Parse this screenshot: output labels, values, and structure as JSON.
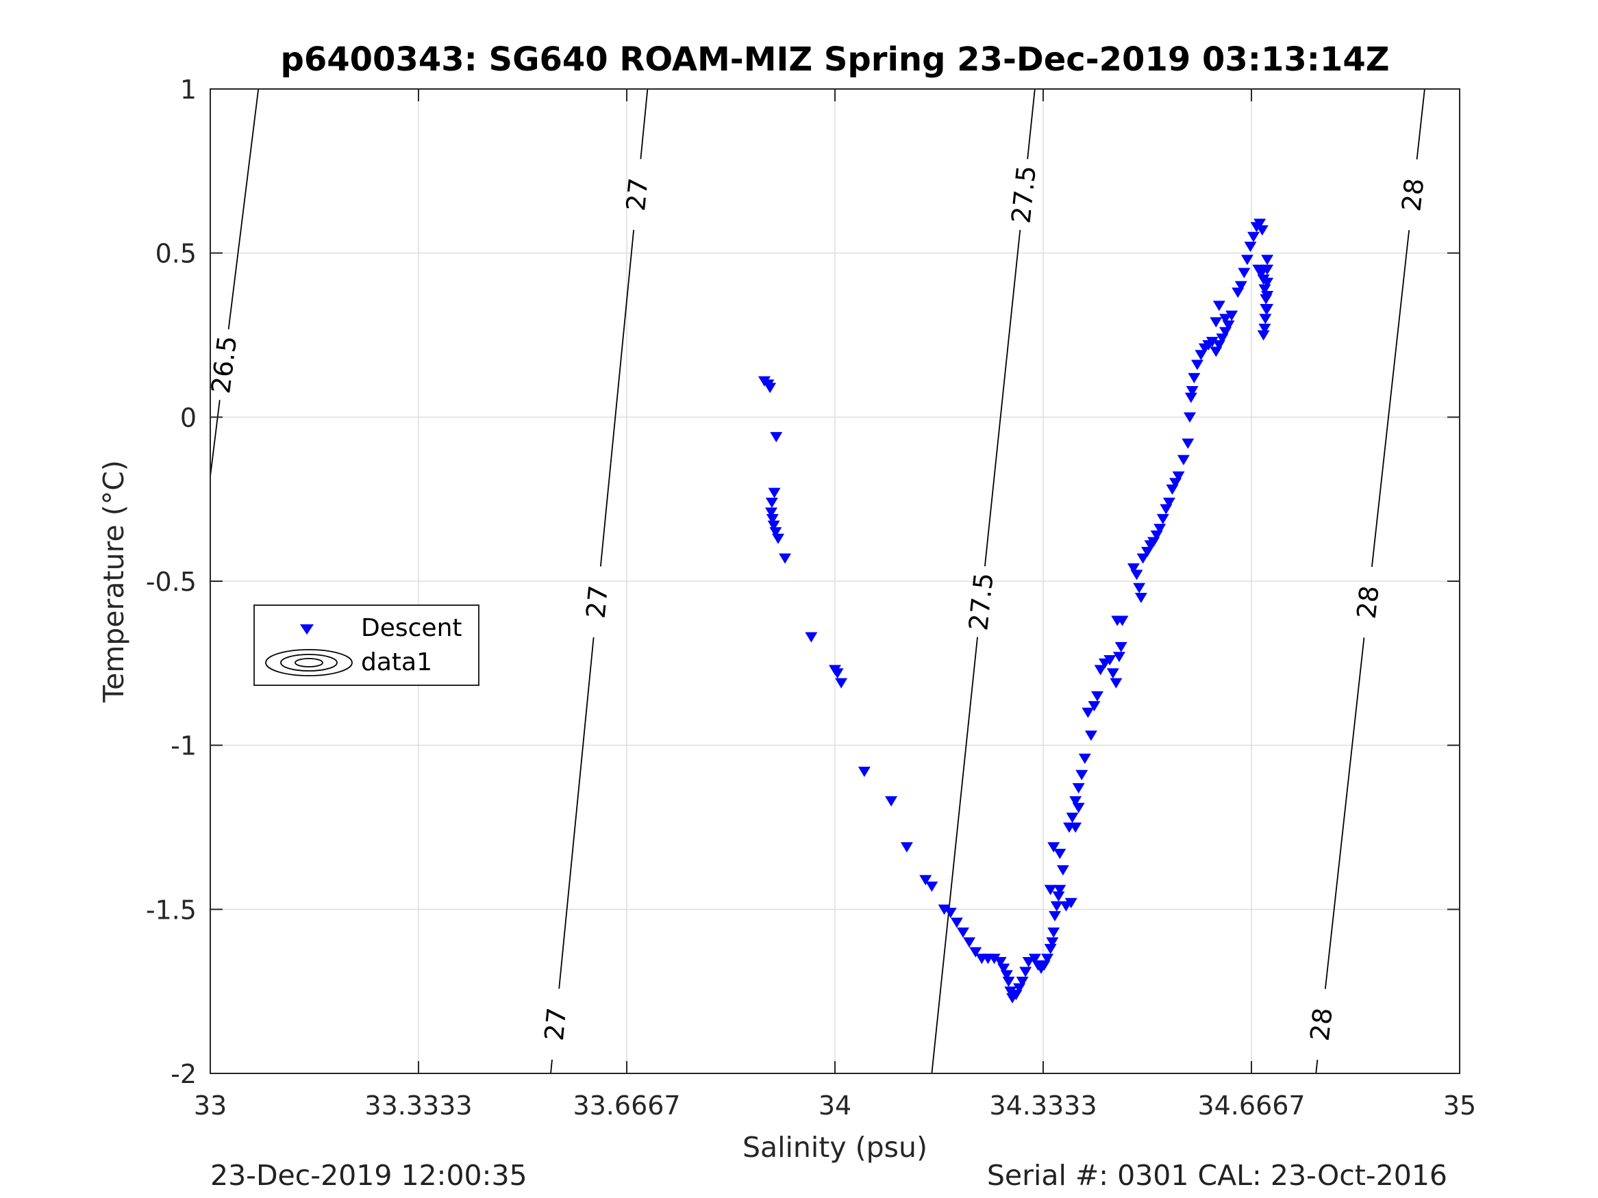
{
  "chart_data": {
    "type": "scatter",
    "title": "p6400343: SG640 ROAM-MIZ Spring 23-Dec-2019 03:13:14Z",
    "xlabel": "Salinity (psu)",
    "ylabel": "Temperature (°C)",
    "xlim": [
      33,
      35
    ],
    "ylim": [
      -2,
      1
    ],
    "x_ticks": [
      33,
      33.3333,
      33.6667,
      34,
      34.3333,
      34.6667,
      35
    ],
    "x_tick_labels": [
      "33",
      "33.3333",
      "33.6667",
      "34",
      "34.3333",
      "34.6667",
      "35"
    ],
    "y_ticks": [
      -2,
      -1.5,
      -1,
      -0.5,
      0,
      0.5,
      1
    ],
    "y_tick_labels": [
      "-2",
      "-1.5",
      "-1",
      "-0.5",
      "0",
      "0.5",
      "1"
    ],
    "grid": true,
    "legend": {
      "placement": "middle-left",
      "entries": [
        "Descent",
        "data1"
      ]
    },
    "series": [
      {
        "name": "Descent",
        "marker": "triangle-down",
        "color": "#0000ff",
        "points": [
          [
            33.887,
            0.11
          ],
          [
            33.893,
            0.1
          ],
          [
            33.896,
            0.09
          ],
          [
            33.906,
            -0.06
          ],
          [
            33.903,
            -0.23
          ],
          [
            33.899,
            -0.26
          ],
          [
            33.898,
            -0.29
          ],
          [
            33.9,
            -0.31
          ],
          [
            33.902,
            -0.33
          ],
          [
            33.905,
            -0.35
          ],
          [
            33.909,
            -0.37
          ],
          [
            33.92,
            -0.43
          ],
          [
            33.962,
            -0.67
          ],
          [
            34.0,
            -0.77
          ],
          [
            34.004,
            -0.78
          ],
          [
            34.01,
            -0.81
          ],
          [
            34.047,
            -1.08
          ],
          [
            34.09,
            -1.17
          ],
          [
            34.115,
            -1.31
          ],
          [
            34.145,
            -1.41
          ],
          [
            34.155,
            -1.43
          ],
          [
            34.175,
            -1.5
          ],
          [
            34.185,
            -1.51
          ],
          [
            34.195,
            -1.54
          ],
          [
            34.205,
            -1.57
          ],
          [
            34.215,
            -1.6
          ],
          [
            34.225,
            -1.63
          ],
          [
            34.235,
            -1.65
          ],
          [
            34.245,
            -1.65
          ],
          [
            34.255,
            -1.65
          ],
          [
            34.265,
            -1.66
          ],
          [
            34.27,
            -1.68
          ],
          [
            34.275,
            -1.7
          ],
          [
            34.278,
            -1.72
          ],
          [
            34.281,
            -1.75
          ],
          [
            34.284,
            -1.77
          ],
          [
            34.29,
            -1.76
          ],
          [
            34.295,
            -1.74
          ],
          [
            34.3,
            -1.72
          ],
          [
            34.305,
            -1.69
          ],
          [
            34.31,
            -1.66
          ],
          [
            34.32,
            -1.65
          ],
          [
            34.325,
            -1.67
          ],
          [
            34.33,
            -1.68
          ],
          [
            34.335,
            -1.67
          ],
          [
            34.34,
            -1.65
          ],
          [
            34.345,
            -1.62
          ],
          [
            34.348,
            -1.6
          ],
          [
            34.35,
            -1.57
          ],
          [
            34.352,
            -1.52
          ],
          [
            34.355,
            -1.49
          ],
          [
            34.358,
            -1.46
          ],
          [
            34.36,
            -1.44
          ],
          [
            34.345,
            -1.44
          ],
          [
            34.35,
            -1.31
          ],
          [
            34.36,
            -1.33
          ],
          [
            34.365,
            -1.38
          ],
          [
            34.37,
            -1.49
          ],
          [
            34.378,
            -1.48
          ],
          [
            34.375,
            -1.25
          ],
          [
            34.38,
            -1.22
          ],
          [
            34.385,
            -1.17
          ],
          [
            34.39,
            -1.13
          ],
          [
            34.395,
            -1.09
          ],
          [
            34.4,
            -1.04
          ],
          [
            34.39,
            -1.19
          ],
          [
            34.385,
            -1.25
          ],
          [
            34.41,
            -0.97
          ],
          [
            34.405,
            -0.9
          ],
          [
            34.415,
            -0.88
          ],
          [
            34.42,
            -0.85
          ],
          [
            34.425,
            -0.77
          ],
          [
            34.432,
            -0.75
          ],
          [
            34.44,
            -0.74
          ],
          [
            34.445,
            -0.78
          ],
          [
            34.45,
            -0.81
          ],
          [
            34.455,
            -0.73
          ],
          [
            34.458,
            -0.7
          ],
          [
            34.452,
            -0.62
          ],
          [
            34.46,
            -0.62
          ],
          [
            34.478,
            -0.46
          ],
          [
            34.483,
            -0.48
          ],
          [
            34.487,
            -0.52
          ],
          [
            34.49,
            -0.55
          ],
          [
            34.493,
            -0.43
          ],
          [
            34.5,
            -0.41
          ],
          [
            34.505,
            -0.39
          ],
          [
            34.51,
            -0.38
          ],
          [
            34.515,
            -0.36
          ],
          [
            34.52,
            -0.34
          ],
          [
            34.525,
            -0.31
          ],
          [
            34.53,
            -0.28
          ],
          [
            34.535,
            -0.26
          ],
          [
            34.54,
            -0.22
          ],
          [
            34.545,
            -0.2
          ],
          [
            34.55,
            -0.18
          ],
          [
            34.558,
            -0.13
          ],
          [
            34.565,
            -0.08
          ],
          [
            34.568,
            0.0
          ],
          [
            34.57,
            0.06
          ],
          [
            34.572,
            0.08
          ],
          [
            34.575,
            0.12
          ],
          [
            34.58,
            0.16
          ],
          [
            34.586,
            0.19
          ],
          [
            34.592,
            0.21
          ],
          [
            34.598,
            0.22
          ],
          [
            34.604,
            0.23
          ],
          [
            34.61,
            0.2
          ],
          [
            34.615,
            0.22
          ],
          [
            34.62,
            0.24
          ],
          [
            34.625,
            0.26
          ],
          [
            34.63,
            0.28
          ],
          [
            34.635,
            0.31
          ],
          [
            34.61,
            0.29
          ],
          [
            34.615,
            0.34
          ],
          [
            34.625,
            0.3
          ],
          [
            34.645,
            0.38
          ],
          [
            34.65,
            0.4
          ],
          [
            34.655,
            0.44
          ],
          [
            34.66,
            0.48
          ],
          [
            34.665,
            0.52
          ],
          [
            34.67,
            0.55
          ],
          [
            34.675,
            0.58
          ],
          [
            34.68,
            0.59
          ],
          [
            34.684,
            0.57
          ],
          [
            34.678,
            0.45
          ],
          [
            34.683,
            0.44
          ],
          [
            34.686,
            0.42
          ],
          [
            34.688,
            0.39
          ],
          [
            34.69,
            0.36
          ],
          [
            34.69,
            0.33
          ],
          [
            34.689,
            0.3
          ],
          [
            34.688,
            0.27
          ],
          [
            34.686,
            0.25
          ],
          [
            34.692,
            0.48
          ],
          [
            34.692,
            0.45
          ],
          [
            34.692,
            0.41
          ],
          [
            34.692,
            0.37
          ],
          [
            34.692,
            0.33
          ]
        ]
      }
    ],
    "contours": {
      "name": "data1",
      "color": "#000000",
      "lines": [
        {
          "level": "26.5",
          "points": [
            [
              33.0,
              -0.18
            ],
            [
              33.077,
              1.0
            ]
          ],
          "label_positions": [
            [
              33.022,
              0.16
            ]
          ]
        },
        {
          "level": "27",
          "points": [
            [
              33.545,
              -2.0
            ],
            [
              33.7,
              1.0
            ]
          ],
          "label_positions": [
            [
              33.553,
              -1.85
            ],
            [
              33.603,
              -0.56
            ],
            [
              33.676,
              0.68
            ]
          ]
        },
        {
          "level": "27.5",
          "points": [
            [
              34.155,
              -2.0
            ],
            [
              34.32,
              1.0
            ]
          ],
          "label_positions": [
            [
              34.222,
              -0.56
            ],
            [
              34.295,
              0.68
            ]
          ]
        },
        {
          "level": "28",
          "points": [
            [
              34.77,
              -2.0
            ],
            [
              34.944,
              1.0
            ]
          ],
          "label_positions": [
            [
              34.776,
              -1.85
            ],
            [
              34.834,
              -0.56
            ],
            [
              34.914,
              0.68
            ]
          ]
        }
      ]
    }
  },
  "footer": {
    "timestamp": "23-Dec-2019 12:00:35",
    "serial_cal": "Serial #: 0301  CAL: 23-Oct-2016"
  }
}
